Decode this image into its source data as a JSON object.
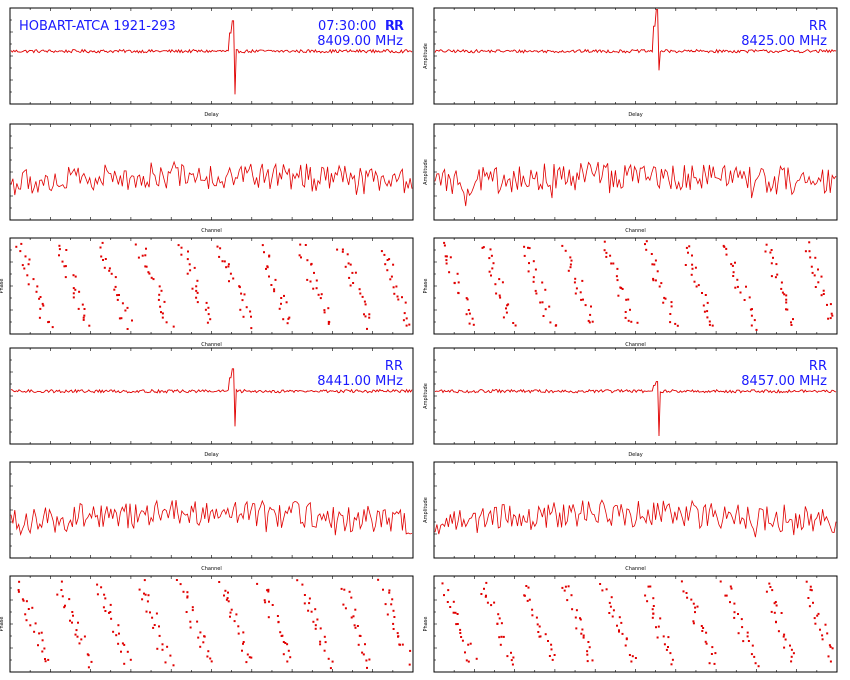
{
  "header": {
    "title": "HOBART-ATCA 1921-293",
    "time": "07:30:00",
    "polarization": "RR"
  },
  "colors": {
    "trace": "#e00000",
    "frame": "#000000",
    "annotation": "#1a1aff"
  },
  "chart_data": [
    {
      "type": "line",
      "panel": "delay",
      "band": 0,
      "xlabel": "Delay",
      "ylabel": "",
      "annotation": [
        "RR",
        "8409.00 MHz"
      ],
      "xlim": [
        -256,
        256
      ],
      "ylim": [
        -3,
        3
      ],
      "series": [
        {
          "values_source": "noise",
          "spike": {
            "x": 27,
            "up": 1.9,
            "down": -2.7
          }
        }
      ]
    },
    {
      "type": "line",
      "panel": "delay",
      "band": 1,
      "xlabel": "Delay",
      "ylabel": "Amplitude",
      "annotation": [
        "RR",
        "8425.00 MHz"
      ],
      "xlim": [
        -256,
        256
      ],
      "ylim": [
        -3,
        3
      ],
      "series": [
        {
          "values_source": "noise",
          "spike": {
            "x": 27,
            "up": 2.6,
            "down": -1.2
          }
        }
      ]
    },
    {
      "type": "line",
      "panel": "amplitude",
      "band": 0,
      "xlabel": "Channel",
      "ylabel": "",
      "annotation": [],
      "xlim": [
        0,
        512
      ],
      "ylim": [
        0,
        8
      ],
      "series": [
        {
          "values_source": "noise"
        }
      ]
    },
    {
      "type": "line",
      "panel": "amplitude",
      "band": 1,
      "xlabel": "Channel",
      "ylabel": "Amplitude",
      "annotation": [],
      "xlim": [
        0,
        512
      ],
      "ylim": [
        0,
        8
      ],
      "series": [
        {
          "values_source": "noise"
        }
      ]
    },
    {
      "type": "scatter",
      "panel": "phase",
      "band": 0,
      "xlabel": "Channel",
      "ylabel": "Phase",
      "annotation": [],
      "xlim": [
        0,
        512
      ],
      "ylim": [
        -180,
        180
      ],
      "series": [
        {
          "values_source": "wrapped phase"
        }
      ]
    },
    {
      "type": "scatter",
      "panel": "phase",
      "band": 1,
      "xlabel": "Channel",
      "ylabel": "Phase",
      "annotation": [],
      "xlim": [
        0,
        512
      ],
      "ylim": [
        -180,
        180
      ],
      "series": [
        {
          "values_source": "wrapped phase"
        }
      ]
    },
    {
      "type": "line",
      "panel": "delay",
      "band": 2,
      "xlabel": "Delay",
      "ylabel": "",
      "annotation": [
        "RR",
        "8441.00 MHz"
      ],
      "xlim": [
        -256,
        256
      ],
      "ylim": [
        -3,
        3
      ],
      "series": [
        {
          "values_source": "noise",
          "spike": {
            "x": 27,
            "up": 1.4,
            "down": -2.2
          }
        }
      ]
    },
    {
      "type": "line",
      "panel": "delay",
      "band": 3,
      "xlabel": "Delay",
      "ylabel": "Amplitude",
      "annotation": [
        "RR",
        "8457.00 MHz"
      ],
      "xlim": [
        -256,
        256
      ],
      "ylim": [
        -3,
        3
      ],
      "series": [
        {
          "values_source": "noise",
          "spike": {
            "x": 27,
            "up": 0.6,
            "down": -2.8
          }
        }
      ]
    },
    {
      "type": "line",
      "panel": "amplitude",
      "band": 2,
      "xlabel": "Channel",
      "ylabel": "",
      "annotation": [],
      "xlim": [
        0,
        512
      ],
      "ylim": [
        0,
        8
      ],
      "series": [
        {
          "values_source": "noise"
        }
      ]
    },
    {
      "type": "line",
      "panel": "amplitude",
      "band": 3,
      "xlabel": "Channel",
      "ylabel": "Amplitude",
      "annotation": [],
      "xlim": [
        0,
        512
      ],
      "ylim": [
        0,
        8
      ],
      "series": [
        {
          "values_source": "noise"
        }
      ]
    },
    {
      "type": "scatter",
      "panel": "phase",
      "band": 2,
      "xlabel": "Channel",
      "ylabel": "Phase",
      "annotation": [],
      "xlim": [
        0,
        512
      ],
      "ylim": [
        -180,
        180
      ],
      "series": [
        {
          "values_source": "wrapped phase"
        }
      ]
    },
    {
      "type": "scatter",
      "panel": "phase",
      "band": 3,
      "xlabel": "Channel",
      "ylabel": "Phase",
      "annotation": [],
      "xlim": [
        0,
        512
      ],
      "ylim": [
        -180,
        180
      ],
      "series": [
        {
          "values_source": "wrapped phase"
        }
      ]
    }
  ]
}
